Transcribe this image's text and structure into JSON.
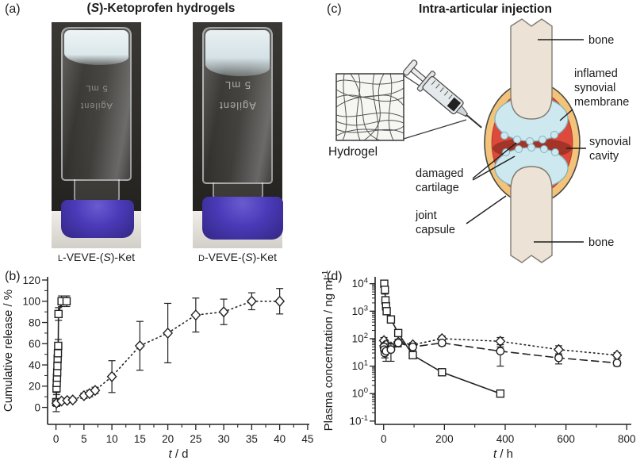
{
  "panels": {
    "a": {
      "tag": "(a)",
      "title": {
        "pre": "(",
        "stereo": "S",
        "post": ")-Ketoprofen hydrogels"
      },
      "vials": [
        {
          "prefix": "L",
          "body": "-VEVE-(",
          "stereo": "S",
          "suffix": ")-Ket",
          "glass_lines": [
            "Agilent",
            "5 mL"
          ]
        },
        {
          "prefix": "D",
          "body": "-VEVE-(",
          "stereo": "S",
          "suffix": ")-Ket",
          "glass_lines": [
            "Agilent",
            "5 mL"
          ]
        }
      ],
      "colors": {
        "cap_blue": "#4335b5",
        "photo_background": "#2c2b28",
        "table": "#d8d5d0"
      }
    },
    "b": {
      "tag": "(b)"
    },
    "c": {
      "tag": "(c)",
      "title": "Intra-articular injection",
      "labels": {
        "bone_top": "bone",
        "inflamed_1": "inflamed",
        "inflamed_2": "synovial",
        "inflamed_3": "membrane",
        "cavity_1": "synovial",
        "cavity_2": "cavity",
        "damaged_1": "damaged",
        "damaged_2": "cartilage",
        "capsule_1": "joint",
        "capsule_2": "capsule",
        "bone_bottom": "bone",
        "hydrogel": "Hydrogel"
      },
      "colors": {
        "bone": "#ece3d6",
        "joint_capsule": "#f3c379",
        "inflamed_membrane": "#dd4a3c",
        "synovial_cavity": "#a23527",
        "cartilage": "#cde8ee"
      }
    },
    "d": {
      "tag": "(d)"
    }
  },
  "chart_data": [
    {
      "type": "line",
      "panel": "b",
      "title": "",
      "xlabel_italic": "t",
      "xlabel_rest": " / d",
      "ylabel": "Cumulative release / %",
      "xlim": [
        0,
        45
      ],
      "ylim": [
        0,
        120
      ],
      "xdraw": [
        -1.5,
        45.3
      ],
      "ydraw": [
        -16,
        123
      ],
      "grid": false,
      "legend": "none",
      "x_major_ticks": [
        0,
        5,
        10,
        15,
        20,
        25,
        30,
        35,
        40,
        45
      ],
      "x_minor_ticks": [
        2.5,
        7.5,
        12.5,
        17.5,
        22.5,
        27.5,
        32.5,
        37.5,
        42.5
      ],
      "y_major_ticks": [
        0,
        20,
        40,
        60,
        80,
        100,
        120
      ],
      "y_minor_ticks": [
        10,
        30,
        50,
        70,
        90,
        110
      ],
      "series": [
        {
          "name": "squares-solid",
          "marker": "square",
          "line": "solid",
          "x": [
            0.05,
            0.1,
            0.14,
            0.18,
            0.22,
            0.26,
            0.3,
            0.35,
            0.4,
            0.45,
            1.0,
            1.9
          ],
          "y": [
            5,
            18,
            23,
            28,
            33,
            39,
            46,
            51,
            58,
            88,
            100,
            100
          ],
          "yerr": [
            9,
            6,
            5,
            5,
            4,
            5,
            5,
            5,
            6,
            6,
            5,
            5
          ]
        },
        {
          "name": "diamonds-dotted",
          "marker": "diamond",
          "line": "dotted",
          "x": [
            0.1,
            1,
            2,
            3,
            5,
            6,
            7,
            10,
            15,
            20,
            25,
            30,
            35,
            40
          ],
          "y": [
            4,
            6,
            6.5,
            7,
            11,
            13,
            16,
            29,
            58,
            70,
            87,
            90,
            100,
            100
          ],
          "yerr": [
            3,
            2,
            2,
            2,
            2.5,
            3,
            3,
            15,
            23,
            28,
            16,
            12,
            8,
            12
          ]
        }
      ]
    },
    {
      "type": "line",
      "panel": "d",
      "title": "",
      "xlabel_italic": "t",
      "xlabel_rest": " / h",
      "ylabel_main": "Plasma concentration / ng ml",
      "ylabel_sup": "-1",
      "xlim": [
        0,
        800
      ],
      "ylog": true,
      "xdraw": [
        -28,
        815
      ],
      "ydraw": [
        -1.12,
        4.25
      ],
      "grid": false,
      "legend": "none",
      "x_major_ticks": [
        0,
        200,
        400,
        600,
        800
      ],
      "x_minor_ticks": [
        100,
        300,
        500,
        700
      ],
      "y_major_tick_exponents": [
        -1,
        0,
        1,
        2,
        3,
        4
      ],
      "series": [
        {
          "name": "squares-solid",
          "marker": "square",
          "line": "solid",
          "x": [
            2,
            4,
            6,
            8,
            10,
            24,
            48,
            96,
            192,
            384
          ],
          "y": [
            10000,
            6000,
            2500,
            1500,
            1000,
            500,
            160,
            25,
            6,
            1
          ],
          "yerr": [
            2600,
            1800,
            700,
            400,
            250,
            130,
            40,
            6,
            1.5,
            0.2
          ]
        },
        {
          "name": "diamonds-dotted",
          "marker": "diamond",
          "line": "dotted",
          "x": [
            1,
            2,
            4,
            8,
            24,
            48,
            96,
            192,
            384,
            576,
            768
          ],
          "y": [
            85,
            55,
            45,
            60,
            50,
            75,
            60,
            100,
            80,
            40,
            25
          ],
          "yerr": [
            25,
            15,
            12,
            15,
            15,
            20,
            12,
            25,
            30,
            15,
            6
          ]
        },
        {
          "name": "circles-dashed",
          "marker": "circle",
          "line": "dashed",
          "x": [
            1,
            2,
            4,
            8,
            24,
            48,
            96,
            192,
            384,
            576,
            768
          ],
          "y": [
            50,
            40,
            30,
            35,
            40,
            70,
            50,
            70,
            35,
            20,
            13
          ],
          "yerr": [
            15,
            12,
            10,
            20,
            25,
            20,
            12,
            15,
            25,
            8,
            3
          ]
        }
      ]
    }
  ]
}
